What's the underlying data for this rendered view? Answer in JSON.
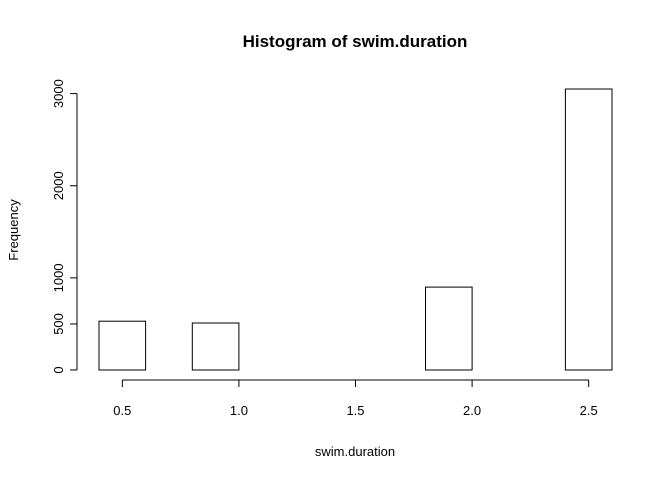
{
  "chart_data": {
    "type": "bar",
    "title": "Histogram of swim.duration",
    "xlabel": "swim.duration",
    "ylabel": "Frequency",
    "xlim": [
      0.4,
      2.6
    ],
    "ylim": [
      0,
      3050
    ],
    "x_ticks": [
      {
        "value": 0.5,
        "label": "0.5"
      },
      {
        "value": 1.0,
        "label": "1.0"
      },
      {
        "value": 1.5,
        "label": "1.5"
      },
      {
        "value": 2.0,
        "label": "2.0"
      },
      {
        "value": 2.5,
        "label": "2.5"
      }
    ],
    "y_ticks": [
      {
        "value": 0,
        "label": "0"
      },
      {
        "value": 500,
        "label": "500"
      },
      {
        "value": 1000,
        "label": "1000"
      },
      {
        "value": 2000,
        "label": "2000"
      },
      {
        "value": 3000,
        "label": "3000"
      }
    ],
    "bins": [
      {
        "start": 0.4,
        "end": 0.6,
        "value": 530
      },
      {
        "start": 0.8,
        "end": 1.0,
        "value": 510
      },
      {
        "start": 1.8,
        "end": 2.0,
        "value": 900
      },
      {
        "start": 2.4,
        "end": 2.6,
        "value": 3050
      }
    ],
    "grid": false,
    "colors": {
      "bar_fill": "#ffffff",
      "bar_stroke": "#000000",
      "axis": "#000000"
    }
  }
}
